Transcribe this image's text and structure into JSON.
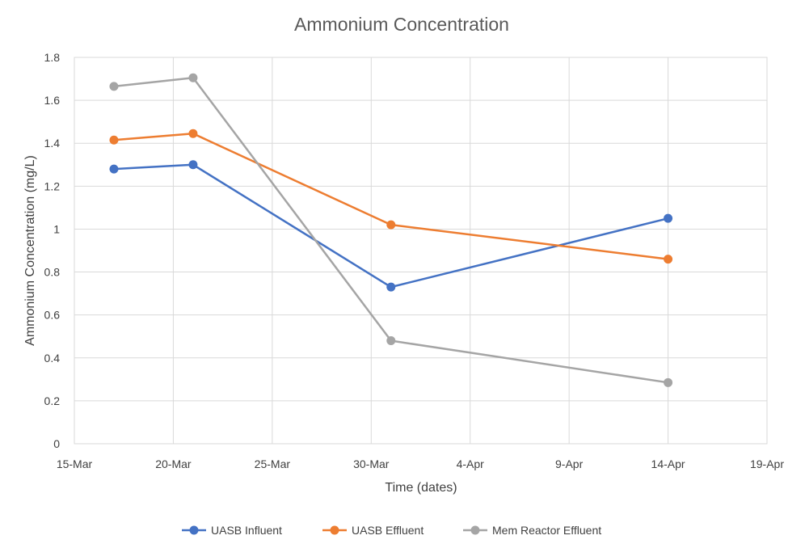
{
  "chart_data": {
    "type": "line",
    "title": "Ammonium Concentration",
    "xlabel": "Time (dates)",
    "ylabel": "Ammonium Concentration (mg/L)",
    "x_ticks": [
      "15-Mar",
      "20-Mar",
      "25-Mar",
      "30-Mar",
      "4-Apr",
      "9-Apr",
      "14-Apr",
      "19-Apr"
    ],
    "xlim": [
      "15-Mar",
      "19-Apr"
    ],
    "ylim": [
      0,
      1.8
    ],
    "y_ticks": [
      "0",
      "0.2",
      "0.4",
      "0.6",
      "0.8",
      "1",
      "1.2",
      "1.4",
      "1.6",
      "1.8"
    ],
    "grid": true,
    "legend_position": "bottom",
    "x": [
      "17-Mar",
      "21-Mar",
      "31-Mar",
      "14-Apr"
    ],
    "series": [
      {
        "name": "UASB Influent",
        "color": "#4472c4",
        "values": [
          1.28,
          1.3,
          0.73,
          1.05
        ]
      },
      {
        "name": "UASB Effluent",
        "color": "#ed7d31",
        "values": [
          1.415,
          1.445,
          1.02,
          0.86
        ]
      },
      {
        "name": "Mem Reactor Effluent",
        "color": "#a5a5a5",
        "values": [
          1.665,
          1.705,
          0.48,
          0.285
        ]
      }
    ]
  }
}
